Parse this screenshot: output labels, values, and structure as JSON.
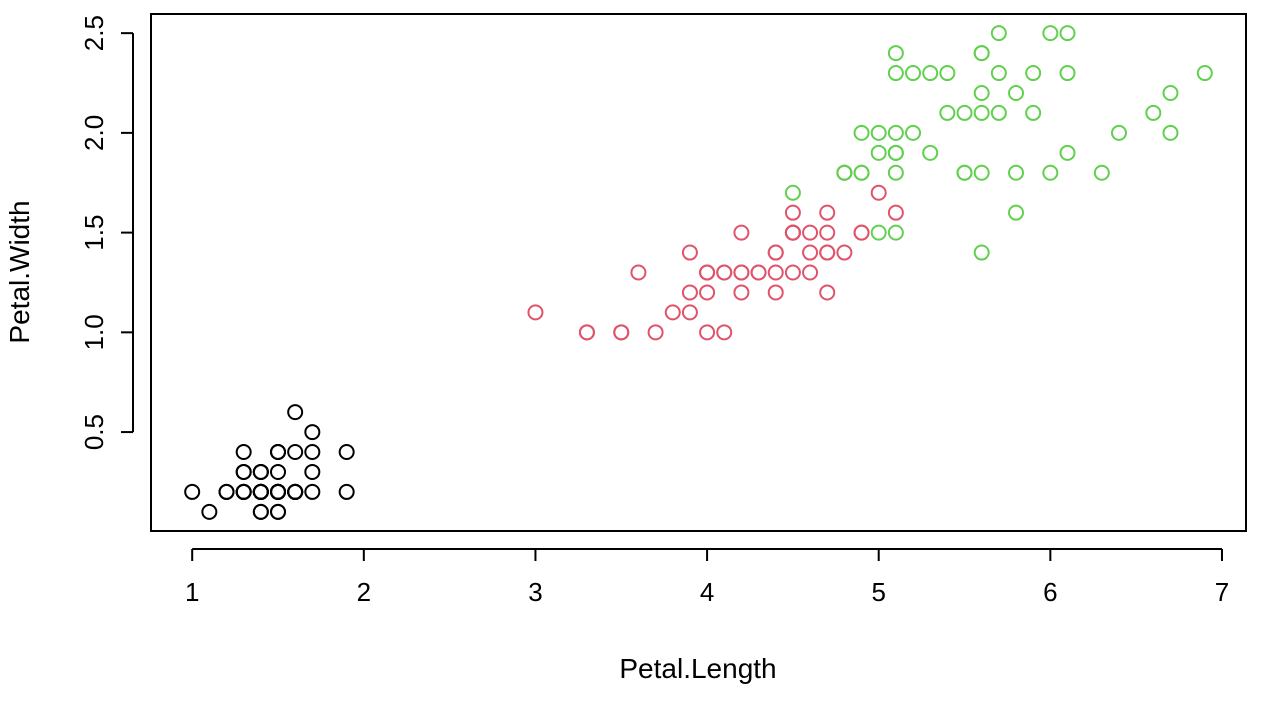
{
  "chart_data": {
    "type": "scatter",
    "xlabel": "Petal.Length",
    "ylabel": "Petal.Width",
    "xlim": [
      0.76,
      7.14
    ],
    "ylim": [
      0.004,
      2.596
    ],
    "x_ticks": [
      1,
      2,
      3,
      4,
      5,
      6,
      7
    ],
    "x_tick_labels": [
      "1",
      "2",
      "3",
      "4",
      "5",
      "6",
      "7"
    ],
    "y_ticks": [
      0.5,
      1.0,
      1.5,
      2.0,
      2.5
    ],
    "y_tick_labels": [
      "0.5",
      "1.0",
      "1.5",
      "2.0",
      "2.5"
    ],
    "marker": "open-circle",
    "grid": false,
    "legend": "none",
    "series": [
      {
        "color": "#000000",
        "points": [
          [
            1.4,
            0.2
          ],
          [
            1.4,
            0.2
          ],
          [
            1.3,
            0.2
          ],
          [
            1.5,
            0.2
          ],
          [
            1.4,
            0.2
          ],
          [
            1.7,
            0.4
          ],
          [
            1.4,
            0.3
          ],
          [
            1.5,
            0.2
          ],
          [
            1.4,
            0.2
          ],
          [
            1.5,
            0.1
          ],
          [
            1.5,
            0.2
          ],
          [
            1.6,
            0.2
          ],
          [
            1.4,
            0.1
          ],
          [
            1.1,
            0.1
          ],
          [
            1.2,
            0.2
          ],
          [
            1.5,
            0.4
          ],
          [
            1.3,
            0.4
          ],
          [
            1.4,
            0.3
          ],
          [
            1.7,
            0.3
          ],
          [
            1.5,
            0.3
          ],
          [
            1.7,
            0.2
          ],
          [
            1.5,
            0.4
          ],
          [
            1.0,
            0.2
          ],
          [
            1.7,
            0.5
          ],
          [
            1.9,
            0.2
          ],
          [
            1.6,
            0.2
          ],
          [
            1.6,
            0.4
          ],
          [
            1.5,
            0.2
          ],
          [
            1.4,
            0.2
          ],
          [
            1.6,
            0.2
          ],
          [
            1.6,
            0.2
          ],
          [
            1.5,
            0.4
          ],
          [
            1.5,
            0.1
          ],
          [
            1.4,
            0.2
          ],
          [
            1.5,
            0.2
          ],
          [
            1.2,
            0.2
          ],
          [
            1.3,
            0.2
          ],
          [
            1.4,
            0.1
          ],
          [
            1.3,
            0.2
          ],
          [
            1.5,
            0.2
          ],
          [
            1.3,
            0.3
          ],
          [
            1.3,
            0.3
          ],
          [
            1.3,
            0.2
          ],
          [
            1.6,
            0.6
          ],
          [
            1.9,
            0.4
          ],
          [
            1.4,
            0.3
          ],
          [
            1.6,
            0.2
          ],
          [
            1.4,
            0.2
          ],
          [
            1.5,
            0.2
          ],
          [
            1.4,
            0.2
          ]
        ]
      },
      {
        "color": "#DF536B",
        "points": [
          [
            4.7,
            1.4
          ],
          [
            4.5,
            1.5
          ],
          [
            4.9,
            1.5
          ],
          [
            4.0,
            1.3
          ],
          [
            4.6,
            1.5
          ],
          [
            4.5,
            1.3
          ],
          [
            4.7,
            1.6
          ],
          [
            3.3,
            1.0
          ],
          [
            4.6,
            1.3
          ],
          [
            3.9,
            1.4
          ],
          [
            3.5,
            1.0
          ],
          [
            4.2,
            1.5
          ],
          [
            4.0,
            1.0
          ],
          [
            4.7,
            1.4
          ],
          [
            3.6,
            1.3
          ],
          [
            4.4,
            1.4
          ],
          [
            4.5,
            1.5
          ],
          [
            4.1,
            1.0
          ],
          [
            4.5,
            1.5
          ],
          [
            3.9,
            1.1
          ],
          [
            4.8,
            1.8
          ],
          [
            4.0,
            1.3
          ],
          [
            4.9,
            1.5
          ],
          [
            4.7,
            1.2
          ],
          [
            4.3,
            1.3
          ],
          [
            4.4,
            1.4
          ],
          [
            4.8,
            1.4
          ],
          [
            5.0,
            1.7
          ],
          [
            4.5,
            1.5
          ],
          [
            3.5,
            1.0
          ],
          [
            3.8,
            1.1
          ],
          [
            3.7,
            1.0
          ],
          [
            3.9,
            1.2
          ],
          [
            5.1,
            1.6
          ],
          [
            4.5,
            1.5
          ],
          [
            4.5,
            1.6
          ],
          [
            4.7,
            1.5
          ],
          [
            4.4,
            1.3
          ],
          [
            4.1,
            1.3
          ],
          [
            4.0,
            1.3
          ],
          [
            4.4,
            1.2
          ],
          [
            4.6,
            1.4
          ],
          [
            4.0,
            1.2
          ],
          [
            3.3,
            1.0
          ],
          [
            4.2,
            1.3
          ],
          [
            4.2,
            1.2
          ],
          [
            4.2,
            1.3
          ],
          [
            4.3,
            1.3
          ],
          [
            3.0,
            1.1
          ],
          [
            4.1,
            1.3
          ]
        ]
      },
      {
        "color": "#61D04F",
        "points": [
          [
            6.0,
            2.5
          ],
          [
            5.1,
            1.9
          ],
          [
            5.9,
            2.1
          ],
          [
            5.6,
            1.8
          ],
          [
            5.8,
            2.2
          ],
          [
            6.6,
            2.1
          ],
          [
            4.5,
            1.7
          ],
          [
            6.3,
            1.8
          ],
          [
            5.8,
            1.8
          ],
          [
            6.1,
            2.5
          ],
          [
            5.1,
            2.0
          ],
          [
            5.3,
            1.9
          ],
          [
            5.5,
            2.1
          ],
          [
            5.0,
            2.0
          ],
          [
            5.1,
            2.4
          ],
          [
            5.3,
            2.3
          ],
          [
            5.5,
            1.8
          ],
          [
            6.7,
            2.2
          ],
          [
            6.9,
            2.3
          ],
          [
            5.0,
            1.5
          ],
          [
            5.7,
            2.3
          ],
          [
            4.9,
            2.0
          ],
          [
            6.7,
            2.0
          ],
          [
            4.9,
            1.8
          ],
          [
            5.7,
            2.1
          ],
          [
            6.0,
            1.8
          ],
          [
            4.8,
            1.8
          ],
          [
            4.9,
            1.8
          ],
          [
            5.6,
            2.1
          ],
          [
            5.8,
            1.6
          ],
          [
            6.1,
            1.9
          ],
          [
            6.4,
            2.0
          ],
          [
            5.6,
            2.2
          ],
          [
            5.1,
            1.5
          ],
          [
            5.6,
            1.4
          ],
          [
            6.1,
            2.3
          ],
          [
            5.6,
            2.4
          ],
          [
            5.5,
            1.8
          ],
          [
            4.8,
            1.8
          ],
          [
            5.4,
            2.1
          ],
          [
            5.6,
            2.4
          ],
          [
            5.1,
            2.3
          ],
          [
            5.1,
            1.9
          ],
          [
            5.9,
            2.3
          ],
          [
            5.7,
            2.5
          ],
          [
            5.2,
            2.3
          ],
          [
            5.0,
            1.9
          ],
          [
            5.2,
            2.0
          ],
          [
            5.4,
            2.3
          ],
          [
            5.1,
            1.8
          ]
        ]
      }
    ]
  }
}
